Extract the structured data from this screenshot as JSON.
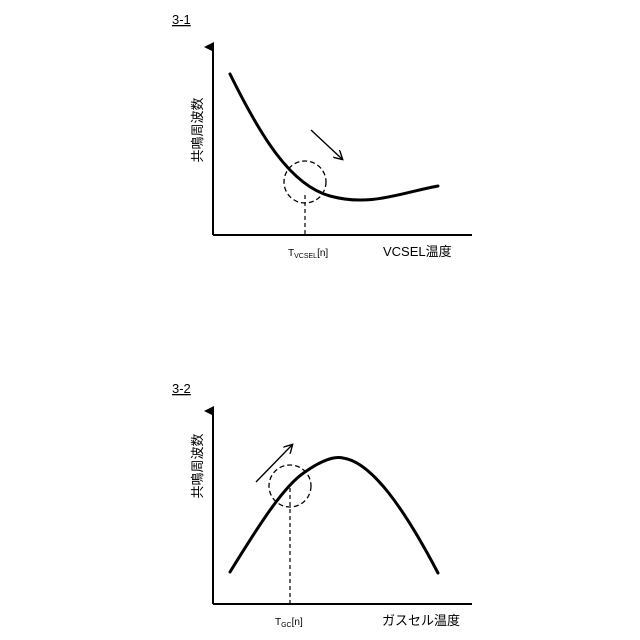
{
  "figures": [
    {
      "id": "3-1",
      "label": "3-1",
      "y_label": "共鳴周波数",
      "x_label": "VCSEL温度",
      "marker_main": "T",
      "marker_sub": "VCSEL",
      "marker_suffix": "[n]"
    },
    {
      "id": "3-2",
      "label": "3-2",
      "y_label": "共鳴周波数",
      "x_label": "ガスセル温度",
      "marker_main": "T",
      "marker_sub": "GC",
      "marker_suffix": "[n]"
    }
  ]
}
